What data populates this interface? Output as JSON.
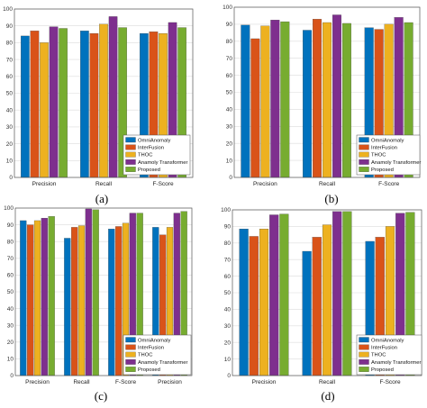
{
  "series_names": [
    "OmniAnomaly",
    "InterFusion",
    "THOC",
    "Anamoly Transformer",
    "Proposed"
  ],
  "colors": [
    "#0072BD",
    "#D95319",
    "#EDB120",
    "#7E2F8E",
    "#77AC30"
  ],
  "chart_data": [
    {
      "type": "bar",
      "panel_label": "(a)",
      "categories": [
        "Precision",
        "Recall",
        "F-Score"
      ],
      "ylim": [
        0,
        100
      ],
      "yticks": [
        "0",
        "10",
        "20",
        "30",
        "40",
        "50",
        "60",
        "70",
        "80",
        "90",
        "100"
      ],
      "grid": true,
      "legend_position": "bottom-right",
      "series": [
        {
          "name": "OmniAnomaly",
          "values": [
            84,
            87,
            85.5
          ]
        },
        {
          "name": "InterFusion",
          "values": [
            87,
            85.5,
            86.5
          ]
        },
        {
          "name": "THOC",
          "values": [
            80,
            91,
            85.5
          ]
        },
        {
          "name": "Anamoly Transformer",
          "values": [
            89.5,
            95.5,
            92
          ]
        },
        {
          "name": "Proposed",
          "values": [
            88.5,
            89,
            89
          ]
        }
      ]
    },
    {
      "type": "bar",
      "panel_label": "(b)",
      "categories": [
        "Precision",
        "Recall",
        "F-Score"
      ],
      "ylim": [
        0,
        100
      ],
      "yticks": [
        "0",
        "10",
        "20",
        "30",
        "40",
        "50",
        "60",
        "70",
        "80",
        "90",
        "100"
      ],
      "grid": true,
      "legend_position": "bottom-right",
      "series": [
        {
          "name": "OmniAnomaly",
          "values": [
            89.5,
            86.5,
            88
          ]
        },
        {
          "name": "InterFusion",
          "values": [
            81.5,
            93,
            87
          ]
        },
        {
          "name": "THOC",
          "values": [
            89,
            91,
            90
          ]
        },
        {
          "name": "Anamoly Transformer",
          "values": [
            92.5,
            95.5,
            94
          ]
        },
        {
          "name": "Proposed",
          "values": [
            91.5,
            90.5,
            91
          ]
        }
      ]
    },
    {
      "type": "bar",
      "panel_label": "(c)",
      "categories": [
        "Precision",
        "Recall",
        "F-Score",
        "Precision"
      ],
      "ylim": [
        0,
        100
      ],
      "yticks": [
        "0",
        "10",
        "20",
        "30",
        "40",
        "50",
        "60",
        "70",
        "80",
        "90",
        "100"
      ],
      "grid": true,
      "legend_position": "bottom-right",
      "series": [
        {
          "name": "OmniAnomaly",
          "values": [
            92.5,
            82,
            87.5,
            88.5
          ]
        },
        {
          "name": "InterFusion",
          "values": [
            90,
            88.5,
            89,
            84
          ]
        },
        {
          "name": "THOC",
          "values": [
            92.5,
            89.5,
            91,
            88.5
          ]
        },
        {
          "name": "Anamoly Transformer",
          "values": [
            94,
            99.5,
            97,
            97
          ]
        },
        {
          "name": "Proposed",
          "values": [
            95,
            99,
            97,
            98
          ]
        }
      ]
    },
    {
      "type": "bar",
      "panel_label": "(d)",
      "categories": [
        "Precision",
        "Recall",
        "F-Score"
      ],
      "ylim": [
        0,
        100
      ],
      "yticks": [
        "0",
        "10",
        "20",
        "30",
        "40",
        "50",
        "60",
        "70",
        "80",
        "90",
        "100"
      ],
      "grid": true,
      "legend_position": "bottom-right",
      "series": [
        {
          "name": "OmniAnomaly",
          "values": [
            88.5,
            75,
            81
          ]
        },
        {
          "name": "InterFusion",
          "values": [
            84,
            83.5,
            83.5
          ]
        },
        {
          "name": "THOC",
          "values": [
            88.5,
            91,
            90
          ]
        },
        {
          "name": "Anamoly Transformer",
          "values": [
            97,
            99,
            98
          ]
        },
        {
          "name": "Proposed",
          "values": [
            97.5,
            99,
            98.5
          ]
        }
      ]
    }
  ]
}
